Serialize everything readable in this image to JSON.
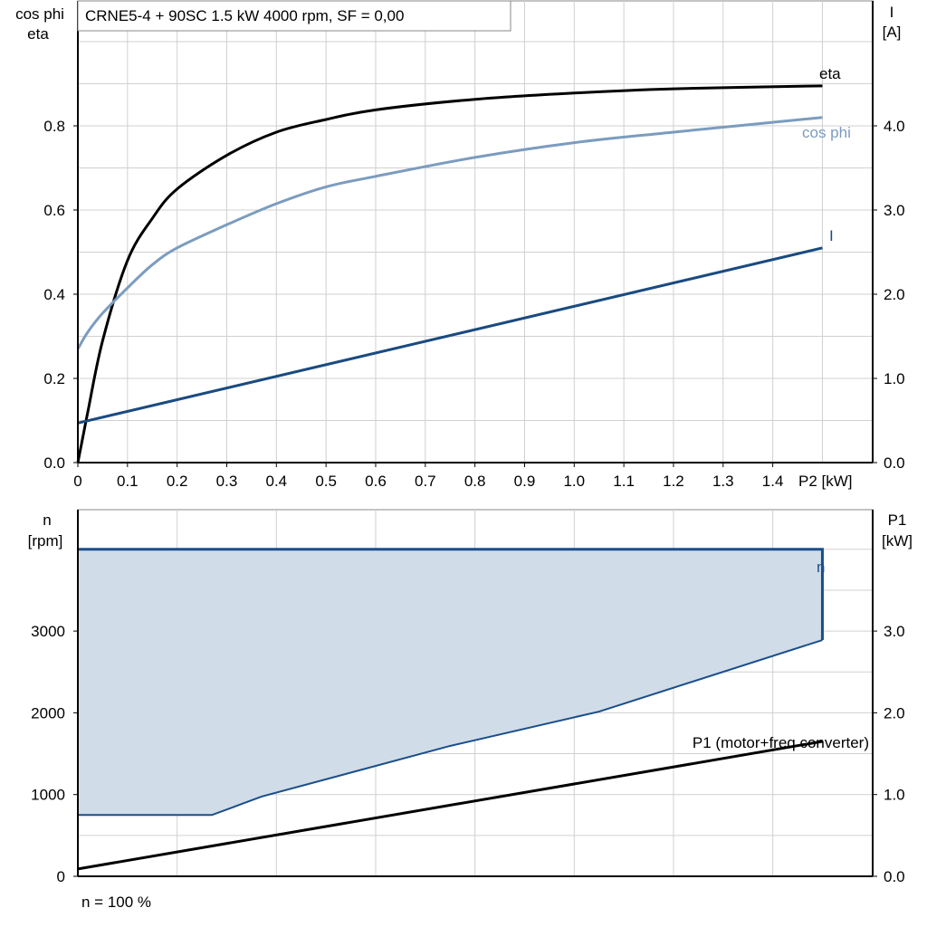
{
  "chart_data": [
    {
      "type": "line",
      "title": "CRNE5-4 + 90SC   1.5 kW   4000 rpm, SF = 0,00",
      "xlabel": "P2 [kW]",
      "ylabel_left": [
        "cos phi",
        "eta"
      ],
      "ylabel_right": [
        "I",
        "[A]"
      ],
      "xlim": [
        0,
        1.6
      ],
      "ylim_left": [
        0,
        1.1
      ],
      "ylim_right": [
        0,
        5.5
      ],
      "x_ticks": [
        "0",
        "0.1",
        "0.2",
        "0.3",
        "0.4",
        "0.5",
        "0.6",
        "0.7",
        "0.8",
        "0.9",
        "1.0",
        "1.1",
        "1.2",
        "1.3",
        "1.4"
      ],
      "y_ticks_left": [
        "0.0",
        "0.2",
        "0.4",
        "0.6",
        "0.8"
      ],
      "y_ticks_right": [
        "0.0",
        "1.0",
        "2.0",
        "3.0",
        "4.0"
      ],
      "grid": true,
      "series": [
        {
          "name": "eta",
          "axis": "left",
          "color": "#000000",
          "x": [
            0,
            0.02,
            0.05,
            0.1,
            0.15,
            0.2,
            0.3,
            0.4,
            0.5,
            0.6,
            0.8,
            1.0,
            1.2,
            1.5
          ],
          "y": [
            0,
            0.12,
            0.29,
            0.48,
            0.58,
            0.65,
            0.73,
            0.785,
            0.815,
            0.838,
            0.863,
            0.878,
            0.888,
            0.895
          ]
        },
        {
          "name": "cos phi",
          "axis": "left",
          "color": "#7b9cbf",
          "x": [
            0,
            0.02,
            0.05,
            0.1,
            0.15,
            0.2,
            0.3,
            0.4,
            0.5,
            0.6,
            0.8,
            1.0,
            1.2,
            1.5
          ],
          "y": [
            0.27,
            0.31,
            0.355,
            0.415,
            0.47,
            0.51,
            0.565,
            0.615,
            0.655,
            0.68,
            0.725,
            0.76,
            0.785,
            0.82
          ]
        },
        {
          "name": "I",
          "axis": "right",
          "color": "#1a4a80",
          "x": [
            0,
            1.5
          ],
          "y": [
            0.47,
            2.55
          ]
        }
      ]
    },
    {
      "type": "area",
      "xlim": [
        0,
        1.6
      ],
      "ylabel_left": [
        "n",
        "[rpm]"
      ],
      "ylabel_right": [
        "P1",
        "[kW]"
      ],
      "ylim_left": [
        0,
        4500
      ],
      "ylim_right": [
        0,
        4.5
      ],
      "y_ticks_left": [
        "0",
        "1000",
        "2000",
        "3000"
      ],
      "y_ticks_right": [
        "0.0",
        "1.0",
        "2.0",
        "3.0"
      ],
      "grid": true,
      "footnote": "n = 100 %",
      "n_range": {
        "name": "n",
        "color": "#1a4e8a",
        "fill": "#d0dce8",
        "upper_x": [
          0,
          1.5
        ],
        "upper_y": [
          4000,
          4000
        ],
        "lower_x": [
          0,
          0.27,
          0.37,
          0.75,
          1.05,
          1.5
        ],
        "lower_y": [
          750,
          750,
          975,
          1595,
          2015,
          2890
        ]
      },
      "series": [
        {
          "name": "P1 (motor+freq converter)",
          "axis": "right",
          "color": "#000000",
          "x": [
            0,
            1.5
          ],
          "y": [
            0.09,
            1.65
          ]
        }
      ]
    }
  ]
}
